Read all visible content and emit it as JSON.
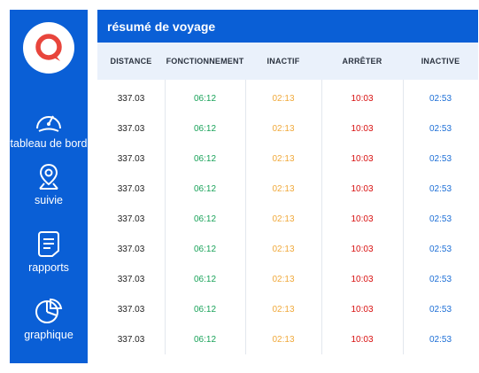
{
  "sidebar": {
    "logo_icon": "map-pin-logo-icon",
    "items": [
      {
        "icon": "gauge-icon",
        "label": "tableau de bord"
      },
      {
        "icon": "location-pin-icon",
        "label": "suivie"
      },
      {
        "icon": "document-icon",
        "label": "rapports"
      },
      {
        "icon": "pie-chart-icon",
        "label": "graphique"
      }
    ]
  },
  "main": {
    "title": "résumé de voyage",
    "columns": [
      "DISTANCE",
      "FONCTIONNEMENT",
      "INACTIF",
      "ARRÊTER",
      "INACTIVE"
    ],
    "column_colors": [
      "#222222",
      "#1aa35a",
      "#f0a93b",
      "#d80f0f",
      "#1d6fd6"
    ],
    "rows": [
      [
        "337.03",
        "06:12",
        "02:13",
        "10:03",
        "02:53"
      ],
      [
        "337.03",
        "06:12",
        "02:13",
        "10:03",
        "02:53"
      ],
      [
        "337.03",
        "06:12",
        "02:13",
        "10:03",
        "02:53"
      ],
      [
        "337.03",
        "06:12",
        "02:13",
        "10:03",
        "02:53"
      ],
      [
        "337.03",
        "06:12",
        "02:13",
        "10:03",
        "02:53"
      ],
      [
        "337.03",
        "06:12",
        "02:13",
        "10:03",
        "02:53"
      ],
      [
        "337.03",
        "06:12",
        "02:13",
        "10:03",
        "02:53"
      ],
      [
        "337.03",
        "06:12",
        "02:13",
        "10:03",
        "02:53"
      ],
      [
        "337.03",
        "06:12",
        "02:13",
        "10:03",
        "02:53"
      ]
    ]
  },
  "colors": {
    "brand_blue": "#0a5fd6",
    "logo_red": "#e8453c",
    "header_bg": "#eaf1fb"
  }
}
